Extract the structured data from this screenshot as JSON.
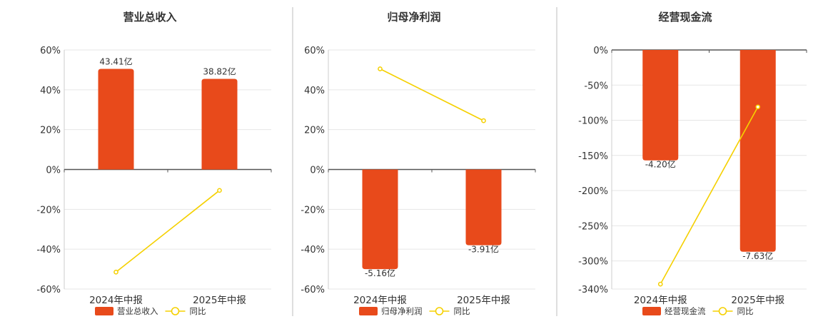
{
  "colors": {
    "bar": "#e84a1b",
    "line": "#f5d000",
    "axis": "#555555",
    "grid": "#e6e6e6",
    "divider": "#bdbdbd",
    "text": "#333333"
  },
  "chart_data": [
    {
      "type": "bar",
      "title": "营业总收入",
      "categories": [
        "2024年中报",
        "2025年中报"
      ],
      "series": [
        {
          "name": "营业总收入",
          "type": "bar",
          "values": [
            50.5,
            45.5
          ],
          "labels": [
            "43.41亿",
            "38.82亿"
          ]
        },
        {
          "name": "同比",
          "type": "line",
          "values": [
            -51.5,
            -10.5
          ]
        }
      ],
      "ylim": [
        -60,
        60
      ],
      "yticks": [
        60,
        40,
        20,
        0,
        -20,
        -40,
        -60
      ],
      "yticklabels": [
        "60%",
        "40%",
        "20%",
        "0%",
        "-20%",
        "-40%",
        "-60%"
      ],
      "grid": true,
      "legend": "bottom"
    },
    {
      "type": "bar",
      "title": "归母净利润",
      "categories": [
        "2024年中报",
        "2025年中报"
      ],
      "series": [
        {
          "name": "归母净利润",
          "type": "bar",
          "values": [
            -50,
            -38
          ],
          "labels": [
            "-5.16亿",
            "-3.91亿"
          ]
        },
        {
          "name": "同比",
          "type": "line",
          "values": [
            50.5,
            24.5
          ]
        }
      ],
      "ylim": [
        -60,
        60
      ],
      "yticks": [
        60,
        40,
        20,
        0,
        -20,
        -40,
        -60
      ],
      "yticklabels": [
        "60%",
        "40%",
        "20%",
        "0%",
        "-20%",
        "-40%",
        "-60%"
      ],
      "grid": true,
      "legend": "bottom"
    },
    {
      "type": "bar",
      "title": "经营现金流",
      "categories": [
        "2024年中报",
        "2025年中报"
      ],
      "series": [
        {
          "name": "经营现金流",
          "type": "bar",
          "values": [
            -157,
            -287
          ],
          "labels": [
            "-4.20亿",
            "-7.63亿"
          ]
        },
        {
          "name": "同比",
          "type": "line",
          "values": [
            -333,
            -81
          ]
        }
      ],
      "ylim": [
        -340,
        0
      ],
      "yticks": [
        0,
        -50,
        -100,
        -150,
        -200,
        -250,
        -300,
        -340
      ],
      "yticklabels": [
        "0%",
        "-50%",
        "-100%",
        "-150%",
        "-200%",
        "-250%",
        "-300%",
        "-340%"
      ],
      "grid": true,
      "legend": "bottom"
    }
  ]
}
